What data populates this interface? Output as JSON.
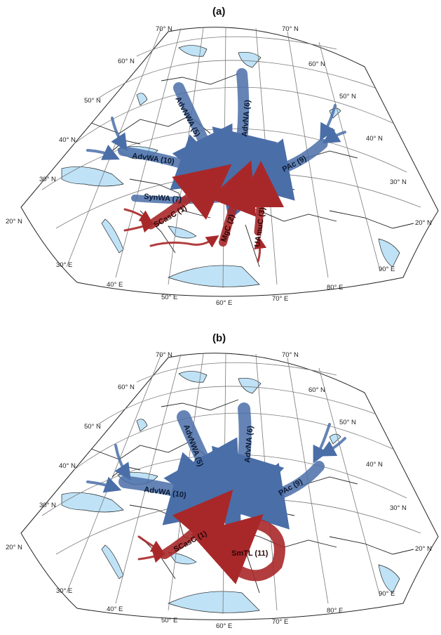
{
  "panels": [
    {
      "id": "a",
      "title": "(a)",
      "lat_labels": [
        "70° N",
        "70° N",
        "60° N",
        "60° N",
        "50° N",
        "50° N",
        "40° N",
        "40° N",
        "30° N",
        "30° N",
        "20° N",
        "20° N"
      ],
      "lon_labels": [
        "30° E",
        "40° E",
        "50° E",
        "60° E",
        "70° E",
        "80° E",
        "90° E"
      ],
      "flows": [
        {
          "label": "AdvNWA (5)",
          "color": "blue"
        },
        {
          "label": "AdvNA (6)",
          "color": "blue"
        },
        {
          "label": "AdvWA (10)",
          "color": "blue"
        },
        {
          "label": "PAc (9)",
          "color": "blue"
        },
        {
          "label": "SynWA (7)",
          "color": "blue"
        },
        {
          "label": "SCasC (1)",
          "color": "red"
        },
        {
          "label": "MgC (2)",
          "color": "red"
        },
        {
          "label": "UAmuC (3)",
          "color": "red"
        }
      ]
    },
    {
      "id": "b",
      "title": "(b)",
      "lat_labels": [
        "70° N",
        "70° N",
        "60° N",
        "60° N",
        "50° N",
        "50° N",
        "40° N",
        "40° N",
        "30° N",
        "30° N",
        "20° N",
        "20° N"
      ],
      "lon_labels": [
        "30° E",
        "40° E",
        "50° E",
        "60° E",
        "70° E",
        "80° E",
        "90° E"
      ],
      "flows": [
        {
          "label": "AdvNWA (5)",
          "color": "blue"
        },
        {
          "label": "AdvNA (6)",
          "color": "blue"
        },
        {
          "label": "AdvWA (10)",
          "color": "blue"
        },
        {
          "label": "PAc (9)",
          "color": "blue"
        },
        {
          "label": "SCasC (1)",
          "color": "red"
        },
        {
          "label": "SmTL (11)",
          "color": "red"
        }
      ]
    }
  ],
  "colors": {
    "blue_flow": "#4a6ea8",
    "red_flow": "#a8282a",
    "sea": "#bfe2f6",
    "target": "#c8c8c8"
  }
}
